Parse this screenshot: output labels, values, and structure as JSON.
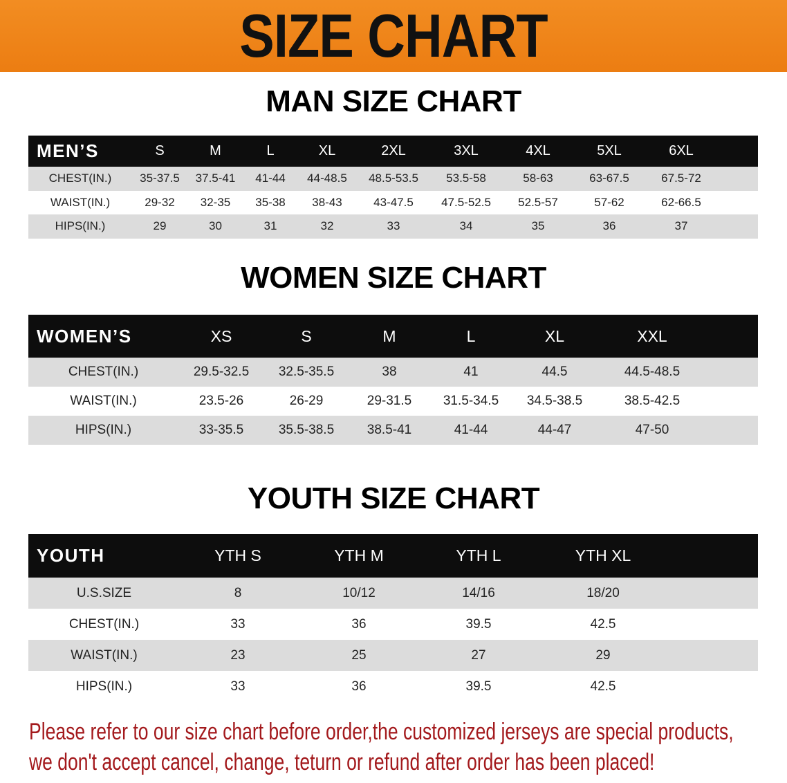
{
  "banner": {
    "title": "SIZE CHART",
    "color": "#ef8419"
  },
  "men": {
    "title": "MAN SIZE CHART",
    "header": [
      "MEN’S",
      "S",
      "M",
      "L",
      "XL",
      "2XL",
      "3XL",
      "4XL",
      "5XL",
      "6XL"
    ],
    "rows": [
      [
        "CHEST(IN.)",
        "35-37.5",
        "37.5-41",
        "41-44",
        "44-48.5",
        "48.5-53.5",
        "53.5-58",
        "58-63",
        "63-67.5",
        "67.5-72"
      ],
      [
        "WAIST(IN.)",
        "29-32",
        "32-35",
        "35-38",
        "38-43",
        "43-47.5",
        "47.5-52.5",
        "52.5-57",
        "57-62",
        "62-66.5"
      ],
      [
        "HIPS(IN.)",
        "29",
        "30",
        "31",
        "32",
        "33",
        "34",
        "35",
        "36",
        "37"
      ]
    ]
  },
  "women": {
    "title": "WOMEN SIZE CHART",
    "header": [
      "WOMEN’S",
      "XS",
      "S",
      "M",
      "L",
      "XL",
      "XXL"
    ],
    "rows": [
      [
        "CHEST(IN.)",
        "29.5-32.5",
        "32.5-35.5",
        "38",
        "41",
        "44.5",
        "44.5-48.5"
      ],
      [
        "WAIST(IN.)",
        "23.5-26",
        "26-29",
        "29-31.5",
        "31.5-34.5",
        "34.5-38.5",
        "38.5-42.5"
      ],
      [
        "HIPS(IN.)",
        "33-35.5",
        "35.5-38.5",
        "38.5-41",
        "41-44",
        "44-47",
        "47-50"
      ]
    ]
  },
  "youth": {
    "title": "YOUTH SIZE CHART",
    "header": [
      "YOUTH",
      "YTH S",
      "YTH M",
      "YTH L",
      "YTH XL"
    ],
    "rows": [
      [
        "U.S.SIZE",
        "8",
        "10/12",
        "14/16",
        "18/20"
      ],
      [
        "CHEST(IN.)",
        "33",
        "36",
        "39.5",
        "42.5"
      ],
      [
        "WAIST(IN.)",
        "23",
        "25",
        "27",
        "29"
      ],
      [
        "HIPS(IN.)",
        "33",
        "36",
        "39.5",
        "42.5"
      ]
    ]
  },
  "note": {
    "line1": "Please refer to our size chart before order,the customized jerseys are special products,",
    "line2": "we don't accept cancel, change, teturn or refund after order has been placed!",
    "color": "#a3191c"
  }
}
